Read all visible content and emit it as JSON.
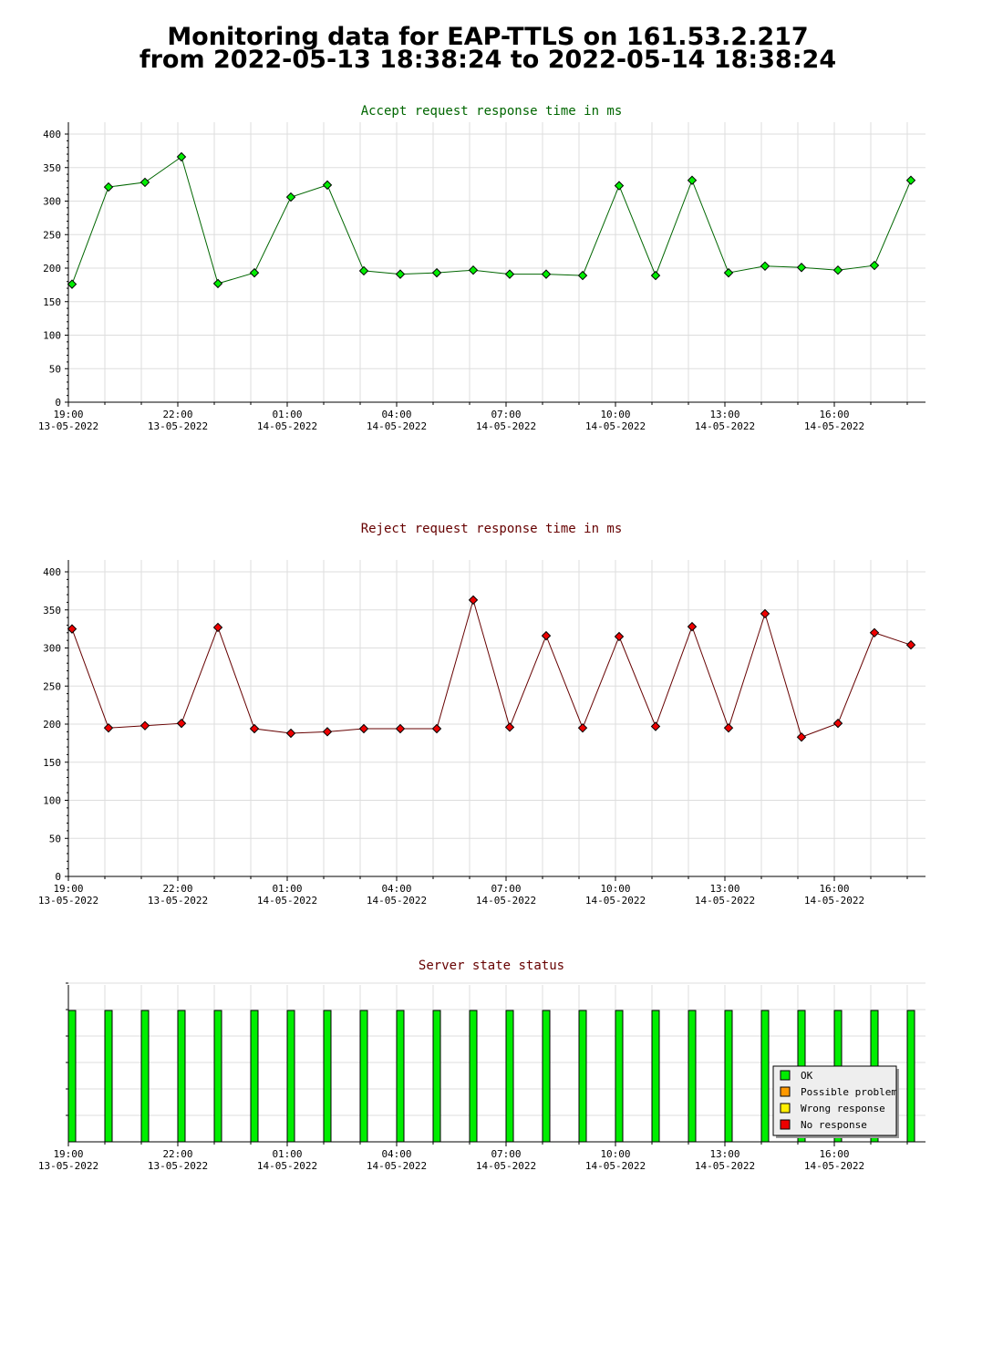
{
  "page": {
    "title_line1": "Monitoring data for EAP-TTLS on 161.53.2.217",
    "title_line2": "from 2022-05-13 18:38:24 to 2022-05-14 18:38:24"
  },
  "colors": {
    "accept_title": "#006600",
    "reject_title": "#660000",
    "status_title": "#660000",
    "accept_line": "#006600",
    "accept_marker": "#00ee00",
    "reject_line": "#660000",
    "reject_marker": "#ee0000",
    "ok": "#00ee00",
    "possible_problem": "#ff9900",
    "wrong_response": "#ffee00",
    "no_response": "#ee0000",
    "grid": "#dddddd"
  },
  "chart_data": [
    {
      "type": "line",
      "title": "Accept request response time in ms",
      "ylim": [
        0,
        400
      ],
      "yticks": [
        0,
        50,
        100,
        150,
        200,
        250,
        300,
        350,
        400
      ],
      "grid": true,
      "x_tick_labels": [
        {
          "hour": 19,
          "time": "19:00",
          "date": "13-05-2022"
        },
        {
          "hour": 22,
          "time": "22:00",
          "date": "13-05-2022"
        },
        {
          "hour": 25,
          "time": "01:00",
          "date": "14-05-2022"
        },
        {
          "hour": 28,
          "time": "04:00",
          "date": "14-05-2022"
        },
        {
          "hour": 31,
          "time": "07:00",
          "date": "14-05-2022"
        },
        {
          "hour": 34,
          "time": "10:00",
          "date": "14-05-2022"
        },
        {
          "hour": 37,
          "time": "13:00",
          "date": "14-05-2022"
        },
        {
          "hour": 40,
          "time": "16:00",
          "date": "14-05-2022"
        }
      ],
      "x": [
        19.1,
        20.1,
        21.1,
        22.1,
        23.1,
        24.1,
        25.1,
        26.1,
        27.1,
        28.1,
        29.1,
        30.1,
        31.1,
        32.1,
        33.1,
        34.1,
        35.1,
        36.1,
        37.1,
        38.1,
        39.1,
        40.1,
        41.1,
        42.1
      ],
      "values": [
        176,
        321,
        328,
        366,
        177,
        193,
        306,
        324,
        196,
        191,
        193,
        197,
        191,
        191,
        189,
        323,
        189,
        331,
        193,
        203,
        201,
        197,
        204,
        331
      ]
    },
    {
      "type": "line",
      "title": "Reject request response time in ms",
      "ylim": [
        0,
        400
      ],
      "yticks": [
        0,
        50,
        100,
        150,
        200,
        250,
        300,
        350,
        400
      ],
      "grid": true,
      "x_tick_labels": [
        {
          "hour": 19,
          "time": "19:00",
          "date": "13-05-2022"
        },
        {
          "hour": 22,
          "time": "22:00",
          "date": "13-05-2022"
        },
        {
          "hour": 25,
          "time": "01:00",
          "date": "14-05-2022"
        },
        {
          "hour": 28,
          "time": "04:00",
          "date": "14-05-2022"
        },
        {
          "hour": 31,
          "time": "07:00",
          "date": "14-05-2022"
        },
        {
          "hour": 34,
          "time": "10:00",
          "date": "14-05-2022"
        },
        {
          "hour": 37,
          "time": "13:00",
          "date": "14-05-2022"
        },
        {
          "hour": 40,
          "time": "16:00",
          "date": "14-05-2022"
        }
      ],
      "x": [
        19.1,
        20.1,
        21.1,
        22.1,
        23.1,
        24.1,
        25.1,
        26.1,
        27.1,
        28.1,
        29.1,
        30.1,
        31.1,
        32.1,
        33.1,
        34.1,
        35.1,
        36.1,
        37.1,
        38.1,
        39.1,
        40.1,
        41.1,
        42.1
      ],
      "values": [
        325,
        195,
        198,
        201,
        327,
        194,
        188,
        190,
        194,
        194,
        194,
        363,
        196,
        316,
        195,
        315,
        197,
        328,
        195,
        345,
        183,
        201,
        320,
        304
      ]
    },
    {
      "type": "bar",
      "title": "Server state status",
      "grid": true,
      "legend_position": "bottom-right",
      "legend": [
        {
          "label": "OK",
          "color_key": "ok"
        },
        {
          "label": "Possible problem",
          "color_key": "possible_problem"
        },
        {
          "label": "Wrong response",
          "color_key": "wrong_response"
        },
        {
          "label": "No response",
          "color_key": "no_response"
        }
      ],
      "x_tick_labels": [
        {
          "hour": 19,
          "time": "19:00",
          "date": "13-05-2022"
        },
        {
          "hour": 22,
          "time": "22:00",
          "date": "13-05-2022"
        },
        {
          "hour": 25,
          "time": "01:00",
          "date": "14-05-2022"
        },
        {
          "hour": 28,
          "time": "04:00",
          "date": "14-05-2022"
        },
        {
          "hour": 31,
          "time": "07:00",
          "date": "14-05-2022"
        },
        {
          "hour": 34,
          "time": "10:00",
          "date": "14-05-2022"
        },
        {
          "hour": 37,
          "time": "13:00",
          "date": "14-05-2022"
        },
        {
          "hour": 40,
          "time": "16:00",
          "date": "14-05-2022"
        }
      ],
      "x": [
        19.1,
        20.1,
        21.1,
        22.1,
        23.1,
        24.1,
        25.1,
        26.1,
        27.1,
        28.1,
        29.1,
        30.1,
        31.1,
        32.1,
        33.1,
        34.1,
        35.1,
        36.1,
        37.1,
        38.1,
        39.1,
        40.1,
        41.1,
        42.1
      ],
      "states": [
        "OK",
        "OK",
        "OK",
        "OK",
        "OK",
        "OK",
        "OK",
        "OK",
        "OK",
        "OK",
        "OK",
        "OK",
        "OK",
        "OK",
        "OK",
        "OK",
        "OK",
        "OK",
        "OK",
        "OK",
        "OK",
        "OK",
        "OK",
        "OK"
      ]
    }
  ]
}
